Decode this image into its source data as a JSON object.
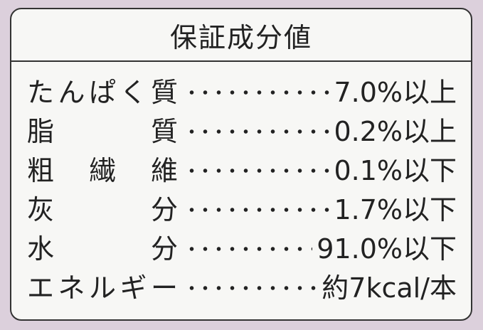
{
  "header": {
    "title": "保証成分値"
  },
  "table": {
    "rows": [
      [
        "たんぱく質",
        "7.0%以上"
      ],
      [
        "脂質",
        "0.2%以上"
      ],
      [
        "粗繊維",
        "0.1%以下"
      ],
      [
        "灰分",
        "1.7%以下"
      ],
      [
        "水分",
        "91.0%以下"
      ],
      [
        "エネルギー",
        "約7kcal/本"
      ]
    ]
  }
}
